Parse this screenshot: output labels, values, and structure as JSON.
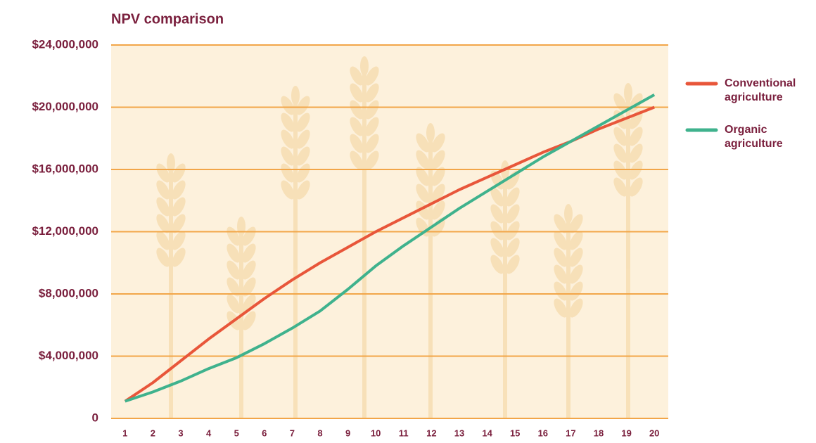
{
  "chart_data": {
    "type": "line",
    "title": "NPV comparison",
    "categories": [
      "1",
      "2",
      "3",
      "4",
      "5",
      "6",
      "7",
      "8",
      "9",
      "10",
      "11",
      "12",
      "13",
      "14",
      "15",
      "16",
      "17",
      "18",
      "19",
      "20"
    ],
    "series": [
      {
        "name": "Conventional agriculture",
        "color": "#e8563a",
        "values": [
          1100000,
          2300000,
          3700000,
          5100000,
          6400000,
          7700000,
          8900000,
          10000000,
          11000000,
          12000000,
          12900000,
          13800000,
          14700000,
          15500000,
          16300000,
          17100000,
          17800000,
          18600000,
          19300000,
          20000000
        ]
      },
      {
        "name": "Organic agriculture",
        "color": "#3fb28d",
        "values": [
          1100000,
          1700000,
          2400000,
          3200000,
          3900000,
          4800000,
          5800000,
          6900000,
          8300000,
          9800000,
          11100000,
          12300000,
          13500000,
          14600000,
          15700000,
          16800000,
          17800000,
          18800000,
          19800000,
          20800000
        ]
      }
    ],
    "ylim": [
      0,
      24000000
    ],
    "yticks": [
      0,
      {
        "value": 4000000,
        "label": "$4,000,000"
      },
      {
        "value": 8000000,
        "label": "$8,000,000"
      },
      {
        "value": 12000000,
        "label": "$12,000,000"
      },
      {
        "value": 16000000,
        "label": "$16,000,000"
      },
      {
        "value": 20000000,
        "label": "$20,000,000"
      },
      {
        "value": 24000000,
        "label": "$24,000,000"
      }
    ],
    "grid": true,
    "legend": "right",
    "background": "#fdf1dc",
    "grid_color": "#f2a649"
  }
}
